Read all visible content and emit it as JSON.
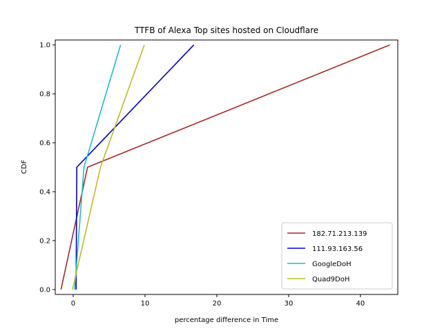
{
  "chart_data": {
    "type": "line",
    "title": "TTFB of Alexa Top sites hosted on Cloudflare",
    "xlabel": "percentage difference in Time",
    "ylabel": "CDF",
    "xlim": [
      -2.5,
      45.2
    ],
    "ylim": [
      -0.02,
      1.02
    ],
    "xticks": [
      0,
      10,
      20,
      30,
      40
    ],
    "yticks": [
      0.0,
      0.2,
      0.4,
      0.6,
      0.8,
      1.0
    ],
    "xtick_labels": [
      "0",
      "10",
      "20",
      "30",
      "40"
    ],
    "ytick_labels": [
      "0.0",
      "0.2",
      "0.4",
      "0.6",
      "0.8",
      "1.0"
    ],
    "grid": false,
    "legend_position": "lower-right",
    "series": [
      {
        "name": "182.71.213.139",
        "color": "#a52a2a",
        "x": [
          -1.7,
          2.0,
          44.1
        ],
        "y": [
          0.0,
          0.5,
          1.0
        ]
      },
      {
        "name": "111.93.163.56",
        "color": "#0000cd",
        "x": [
          0.4,
          0.5,
          16.8
        ],
        "y": [
          0.0,
          0.5,
          1.0
        ]
      },
      {
        "name": "GoogleDoH",
        "color": "#17becf",
        "x": [
          0.2,
          1.5,
          6.6
        ],
        "y": [
          0.0,
          0.5,
          1.0
        ]
      },
      {
        "name": "Quad9DoH",
        "color": "#bcbd22",
        "x": [
          -0.1,
          3.8,
          9.9
        ],
        "y": [
          0.0,
          0.5,
          1.0
        ]
      }
    ]
  }
}
